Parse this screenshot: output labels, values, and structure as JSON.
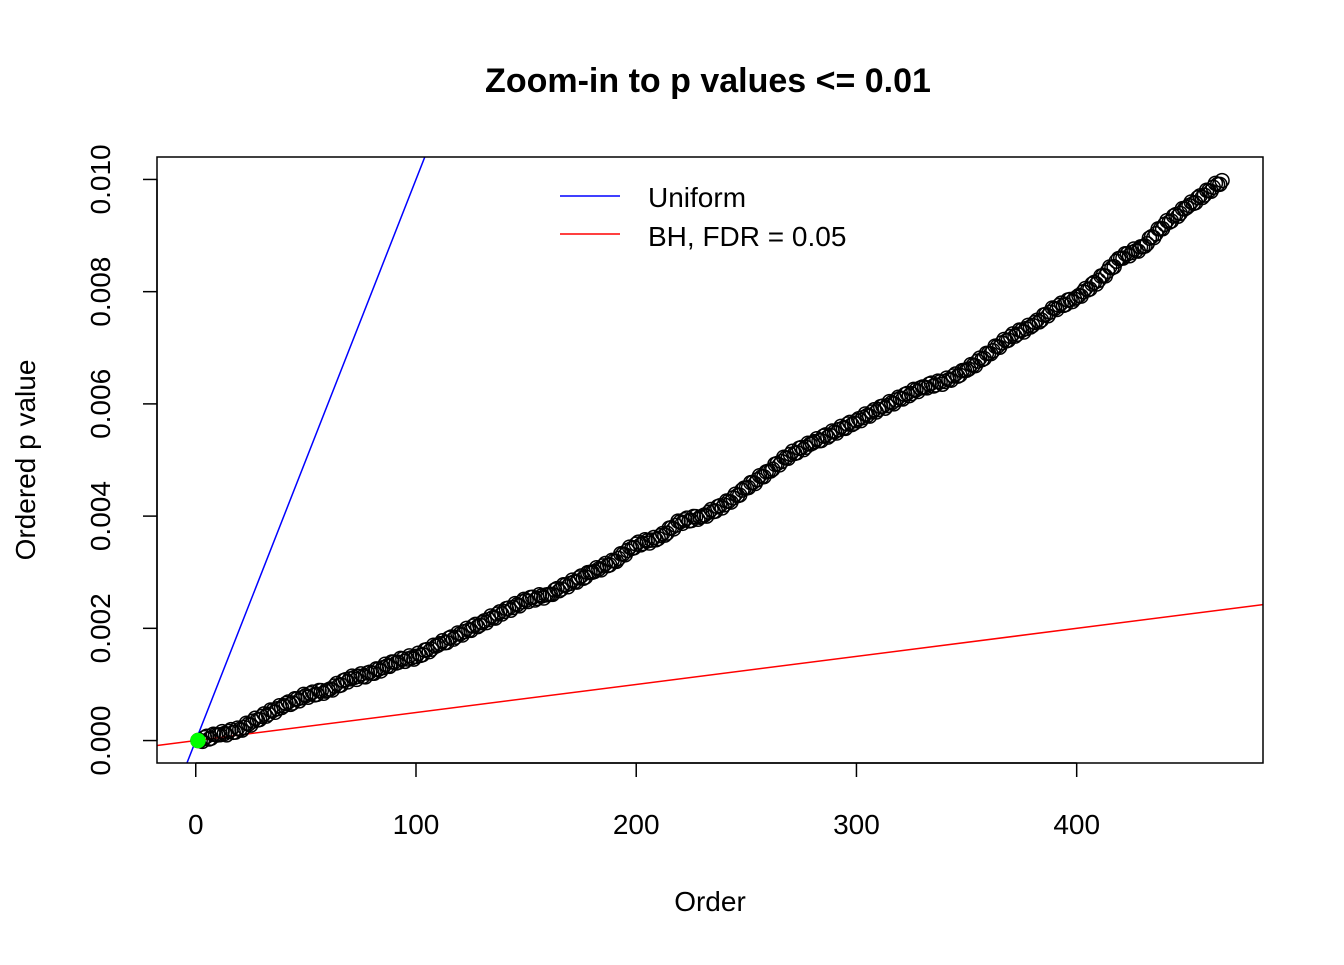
{
  "chart_data": {
    "type": "scatter",
    "title": "Zoom-in to p values <= 0.01",
    "xlabel": "Order",
    "ylabel": "Ordered p value",
    "xlim": [
      -17.6,
      484.6
    ],
    "ylim": [
      -0.0004,
      0.0104
    ],
    "xticks": [
      "0",
      "100",
      "200",
      "300",
      "400"
    ],
    "xtick_values": [
      0,
      100,
      200,
      300,
      400
    ],
    "yticks": [
      "0.000",
      "0.002",
      "0.004",
      "0.006",
      "0.008",
      "0.010"
    ],
    "ytick_values": [
      0,
      0.002,
      0.004,
      0.006,
      0.008,
      0.01
    ],
    "grid": false,
    "legend_position": "top-center",
    "points": {
      "marker": "open-circle",
      "color": "#000000",
      "x": [
        1,
        10,
        20,
        30,
        40,
        50,
        60,
        70,
        80,
        90,
        100,
        110,
        120,
        130,
        140,
        150,
        160,
        170,
        180,
        190,
        200,
        210,
        220,
        230,
        240,
        250,
        260,
        270,
        280,
        290,
        300,
        310,
        320,
        330,
        340,
        350,
        360,
        370,
        380,
        390,
        400,
        410,
        420,
        430,
        440,
        450,
        460,
        466
      ],
      "y": [
        0,
        0.0001,
        0.0002,
        0.00043,
        0.00062,
        0.0008,
        0.0009,
        0.0011,
        0.0012,
        0.0014,
        0.0015,
        0.0017,
        0.0019,
        0.0021,
        0.0023,
        0.0025,
        0.0026,
        0.0028,
        0.003,
        0.0032,
        0.0035,
        0.0036,
        0.0039,
        0.004,
        0.0042,
        0.0045,
        0.0048,
        0.0051,
        0.0053,
        0.0055,
        0.0057,
        0.0059,
        0.0061,
        0.0063,
        0.0064,
        0.0066,
        0.0069,
        0.0072,
        0.0074,
        0.0077,
        0.0079,
        0.0082,
        0.0086,
        0.0088,
        0.0092,
        0.0095,
        0.0098,
        0.00998
      ]
    },
    "highlight_point": {
      "x": 1,
      "y": 0,
      "color": "#00ff00"
    },
    "lines": [
      {
        "name": "Uniform",
        "color": "#0000ff",
        "slope": 0.0001,
        "intercept": 0
      },
      {
        "name": "BH, FDR = 0.05",
        "color": "#ff0000",
        "slope": 5e-06,
        "intercept": 0
      }
    ]
  }
}
